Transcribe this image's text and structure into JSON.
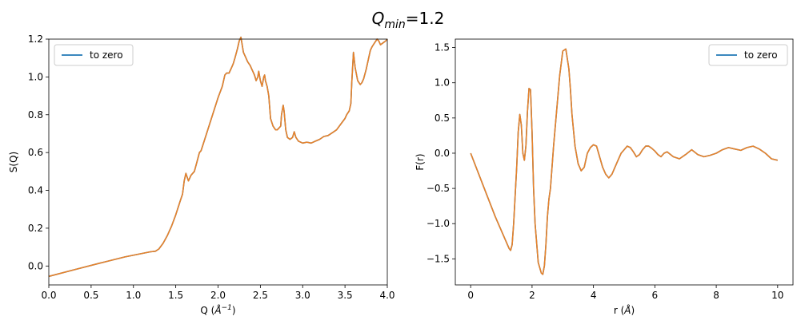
{
  "figure": {
    "suptitle": {
      "base": "Q",
      "sub": "min",
      "suffix": "=1.2"
    }
  },
  "colors": {
    "series_main": "#1f77b4",
    "series_overlay": "#e8822a",
    "axes": "#000000",
    "legend_border": "#cccccc"
  },
  "chart_data": [
    {
      "type": "line",
      "xlabel": {
        "base": "Q (",
        "unit": "Å",
        "exp": "−1",
        "close": ")"
      },
      "ylabel": "S(Q)",
      "xlim": [
        0,
        4.0
      ],
      "ylim": [
        -0.1,
        1.2
      ],
      "xticks": [
        "0.0",
        "0.5",
        "1.0",
        "1.5",
        "2.0",
        "2.5",
        "3.0",
        "3.5",
        "4.0"
      ],
      "yticks": [
        "0.0",
        "0.2",
        "0.4",
        "0.6",
        "0.8",
        "1.0",
        "1.2"
      ],
      "grid": false,
      "legend": {
        "position": "upper-left",
        "entries": [
          "to zero"
        ]
      },
      "series": [
        {
          "name": "to zero",
          "x": [
            0,
            0.3,
            0.6,
            0.9,
            1.2,
            1.26,
            1.3,
            1.35,
            1.4,
            1.45,
            1.5,
            1.55,
            1.58,
            1.6,
            1.62,
            1.65,
            1.68,
            1.7,
            1.72,
            1.75,
            1.78,
            1.8,
            1.85,
            1.9,
            1.95,
            2.0,
            2.05,
            2.08,
            2.1,
            2.13,
            2.15,
            2.18,
            2.2,
            2.23,
            2.25,
            2.27,
            2.3,
            2.33,
            2.35,
            2.38,
            2.4,
            2.43,
            2.45,
            2.47,
            2.48,
            2.5,
            2.52,
            2.54,
            2.55,
            2.56,
            2.58,
            2.6,
            2.62,
            2.65,
            2.68,
            2.7,
            2.72,
            2.74,
            2.75,
            2.77,
            2.78,
            2.8,
            2.82,
            2.85,
            2.88,
            2.9,
            2.92,
            2.95,
            3.0,
            3.05,
            3.1,
            3.15,
            3.2,
            3.25,
            3.3,
            3.35,
            3.4,
            3.45,
            3.5,
            3.52,
            3.55,
            3.57,
            3.58,
            3.6,
            3.62,
            3.65,
            3.68,
            3.7,
            3.72,
            3.75,
            3.78,
            3.8,
            3.82,
            3.85,
            3.88,
            3.9,
            3.92,
            3.95,
            3.98,
            4.0
          ],
          "y": [
            -0.055,
            -0.02,
            0.015,
            0.048,
            0.075,
            0.078,
            0.09,
            0.12,
            0.16,
            0.21,
            0.27,
            0.34,
            0.38,
            0.45,
            0.49,
            0.45,
            0.48,
            0.49,
            0.5,
            0.55,
            0.6,
            0.61,
            0.68,
            0.75,
            0.82,
            0.89,
            0.95,
            1.01,
            1.02,
            1.02,
            1.04,
            1.07,
            1.1,
            1.15,
            1.19,
            1.21,
            1.13,
            1.1,
            1.08,
            1.06,
            1.04,
            1.01,
            0.98,
            1.0,
            1.03,
            0.98,
            0.95,
            1.0,
            1.01,
            0.98,
            0.95,
            0.9,
            0.78,
            0.74,
            0.72,
            0.72,
            0.73,
            0.74,
            0.8,
            0.85,
            0.82,
            0.72,
            0.68,
            0.67,
            0.68,
            0.71,
            0.68,
            0.66,
            0.65,
            0.655,
            0.65,
            0.66,
            0.67,
            0.685,
            0.69,
            0.705,
            0.72,
            0.75,
            0.78,
            0.8,
            0.82,
            0.86,
            0.97,
            1.13,
            1.05,
            0.98,
            0.96,
            0.97,
            0.99,
            1.04,
            1.1,
            1.14,
            1.16,
            1.18,
            1.2,
            1.19,
            1.17,
            1.18,
            1.19,
            1.2
          ]
        }
      ]
    },
    {
      "type": "line",
      "xlabel": {
        "base": "r (",
        "unit": "Å",
        "close": ")"
      },
      "ylabel": "F(r)",
      "xlim": [
        -0.5,
        10.5
      ],
      "ylim": [
        -1.87,
        1.62
      ],
      "xticks": [
        "0",
        "2",
        "4",
        "6",
        "8",
        "10"
      ],
      "yticks": [
        "−1.5",
        "−1.0",
        "−0.5",
        "0.0",
        "0.5",
        "1.0",
        "1.5"
      ],
      "grid": false,
      "legend": {
        "position": "upper-right",
        "entries": [
          "to zero"
        ]
      },
      "series": [
        {
          "name": "to zero",
          "x": [
            0,
            0.4,
            0.8,
            1.1,
            1.25,
            1.3,
            1.35,
            1.4,
            1.5,
            1.55,
            1.6,
            1.65,
            1.7,
            1.75,
            1.8,
            1.85,
            1.9,
            1.95,
            2.0,
            2.05,
            2.1,
            2.2,
            2.3,
            2.35,
            2.4,
            2.45,
            2.5,
            2.55,
            2.6,
            2.7,
            2.8,
            2.9,
            3.0,
            3.1,
            3.2,
            3.25,
            3.3,
            3.4,
            3.5,
            3.6,
            3.7,
            3.8,
            3.9,
            4.0,
            4.1,
            4.2,
            4.3,
            4.4,
            4.5,
            4.6,
            4.7,
            4.8,
            4.9,
            5.0,
            5.1,
            5.2,
            5.3,
            5.4,
            5.5,
            5.6,
            5.7,
            5.8,
            5.9,
            6.0,
            6.1,
            6.2,
            6.3,
            6.4,
            6.6,
            6.8,
            7.0,
            7.2,
            7.4,
            7.6,
            7.8,
            8.0,
            8.2,
            8.4,
            8.6,
            8.8,
            9.0,
            9.2,
            9.4,
            9.6,
            9.8,
            10.0
          ],
          "y": [
            0,
            -0.45,
            -0.9,
            -1.2,
            -1.35,
            -1.38,
            -1.3,
            -1.0,
            -0.2,
            0.3,
            0.55,
            0.4,
            0.0,
            -0.1,
            0.1,
            0.6,
            0.92,
            0.9,
            0.3,
            -0.5,
            -1.0,
            -1.55,
            -1.7,
            -1.72,
            -1.6,
            -1.3,
            -0.9,
            -0.65,
            -0.5,
            0.1,
            0.6,
            1.1,
            1.45,
            1.48,
            1.2,
            0.9,
            0.55,
            0.1,
            -0.15,
            -0.25,
            -0.2,
            0.0,
            0.08,
            0.12,
            0.1,
            -0.05,
            -0.2,
            -0.3,
            -0.35,
            -0.3,
            -0.2,
            -0.1,
            0.0,
            0.05,
            0.1,
            0.08,
            0.02,
            -0.05,
            -0.02,
            0.05,
            0.1,
            0.1,
            0.07,
            0.03,
            -0.02,
            -0.05,
            0.0,
            0.02,
            -0.05,
            -0.08,
            -0.02,
            0.05,
            -0.02,
            -0.05,
            -0.03,
            0.0,
            0.05,
            0.08,
            0.06,
            0.04,
            0.08,
            0.1,
            0.06,
            0.0,
            -0.08,
            -0.1
          ]
        }
      ]
    }
  ]
}
